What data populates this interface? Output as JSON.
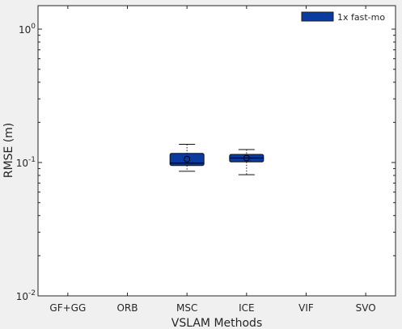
{
  "chart_data": {
    "type": "box",
    "title": "",
    "xlabel": "VSLAM Methods",
    "ylabel": "RMSE (m)",
    "yscale": "log",
    "ylim": [
      0.01,
      1.5
    ],
    "categories": [
      "GF+GG",
      "ORB",
      "MSC",
      "ICE",
      "VIF",
      "SVO"
    ],
    "yticks": [
      {
        "value": 1,
        "base": "10",
        "exp": "0"
      },
      {
        "value": 0.1,
        "base": "10",
        "exp": "-1"
      },
      {
        "value": 0.01,
        "base": "10",
        "exp": "-2"
      }
    ],
    "legend": {
      "label": "1x fast-mo",
      "position": "top-right"
    },
    "grid": false,
    "color": "#0a3b9e",
    "series": [
      {
        "name": "1x fast-mo",
        "boxes": [
          {
            "category": "MSC",
            "whisker_low": 0.086,
            "q1": 0.095,
            "median": 0.099,
            "q3": 0.117,
            "whisker_high": 0.137,
            "mean": 0.106
          },
          {
            "category": "ICE",
            "whisker_low": 0.081,
            "q1": 0.101,
            "median": 0.108,
            "q3": 0.115,
            "whisker_high": 0.125,
            "mean": 0.108
          }
        ]
      }
    ]
  }
}
